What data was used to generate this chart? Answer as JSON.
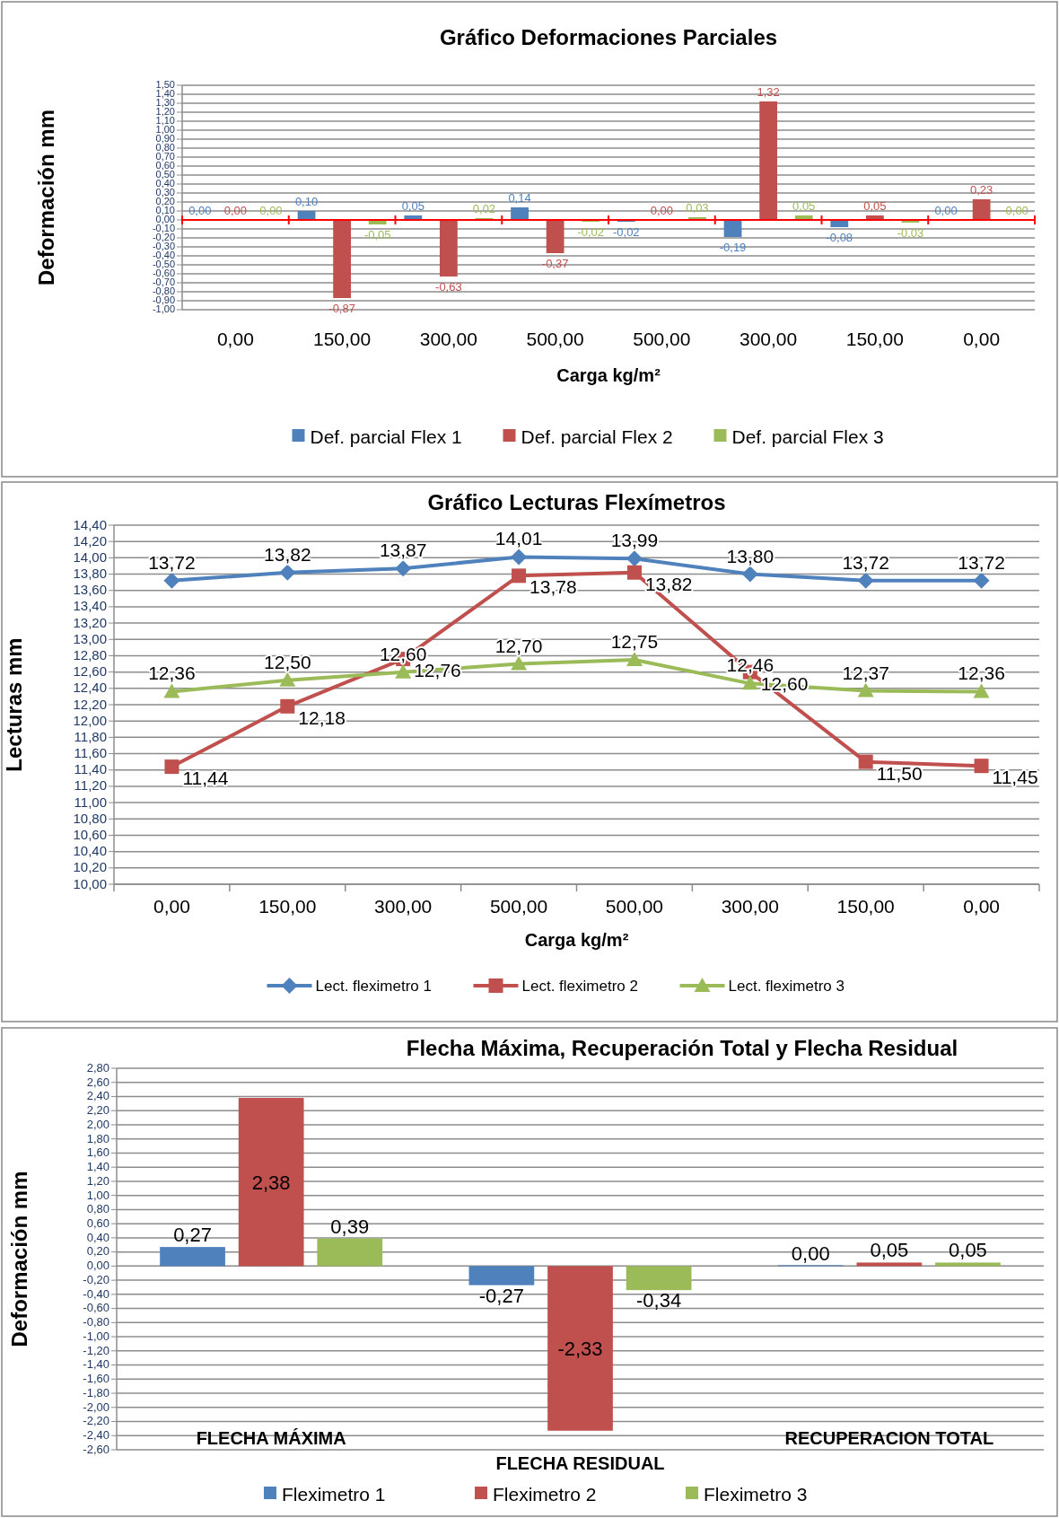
{
  "chart_data": [
    {
      "type": "bar",
      "title": "Gráfico Deformaciones Parciales",
      "xlabel": "Carga kg/m²",
      "ylabel": "Deformación mm",
      "categories": [
        "0,00",
        "150,00",
        "300,00",
        "500,00",
        "500,00",
        "300,00",
        "150,00",
        "0,00"
      ],
      "series": [
        {
          "name": "Def. parcial Flex 1",
          "color": "#4f81bd",
          "values": [
            0.0,
            0.1,
            0.05,
            0.14,
            -0.02,
            -0.19,
            -0.08,
            0.0
          ],
          "value_labels": [
            "0,00",
            "0,10",
            "0,05",
            "0,14",
            "-0,02",
            "-0,19",
            "-0,08",
            "0,00"
          ]
        },
        {
          "name": "Def. parcial Flex 2",
          "color": "#c0504d",
          "values": [
            0.0,
            -0.87,
            -0.63,
            -0.37,
            0.0,
            1.32,
            0.05,
            0.23
          ],
          "value_labels": [
            "0,00",
            "-0,87",
            "-0,63",
            "-0,37",
            "0,00",
            "1,32",
            "0,05",
            "0,23"
          ]
        },
        {
          "name": "Def. parcial Flex 3",
          "color": "#9bbb59",
          "values": [
            0.0,
            -0.05,
            0.02,
            -0.02,
            0.03,
            0.05,
            -0.03,
            0.0
          ],
          "value_labels": [
            "0,00",
            "-0,05",
            "0,02",
            "-0,02",
            "0,03",
            "0,05",
            "-0,03",
            "0,00"
          ]
        }
      ],
      "ylim": [
        -1.0,
        1.5
      ],
      "yticks": [
        {
          "value": -1.0,
          "label": "-1,00"
        },
        {
          "value": -0.9,
          "label": "-0,90"
        },
        {
          "value": -0.8,
          "label": "-0,80"
        },
        {
          "value": -0.7,
          "label": "-0,70"
        },
        {
          "value": -0.6,
          "label": "-0,60"
        },
        {
          "value": -0.5,
          "label": "-0,50"
        },
        {
          "value": -0.4,
          "label": "-0,40"
        },
        {
          "value": -0.3,
          "label": "-0,30"
        },
        {
          "value": -0.2,
          "label": "-0,20"
        },
        {
          "value": -0.1,
          "label": "-0,10"
        },
        {
          "value": 0,
          "label": "0,00"
        },
        {
          "value": 0.1,
          "label": "0,10"
        },
        {
          "value": 0.2,
          "label": "0,20"
        },
        {
          "value": 0.3,
          "label": "0,30"
        },
        {
          "value": 0.4,
          "label": "0,40"
        },
        {
          "value": 0.5,
          "label": "0,50"
        },
        {
          "value": 0.6,
          "label": "0,60"
        },
        {
          "value": 0.7,
          "label": "0,70"
        },
        {
          "value": 0.8,
          "label": "0,80"
        },
        {
          "value": 0.9,
          "label": "0,90"
        },
        {
          "value": 1.0,
          "label": "1,00"
        },
        {
          "value": 1.1,
          "label": "1,10"
        },
        {
          "value": 1.2,
          "label": "1,20"
        },
        {
          "value": 1.3,
          "label": "1,30"
        },
        {
          "value": 1.4,
          "label": "1,40"
        },
        {
          "value": 1.5,
          "label": "1,50"
        }
      ],
      "ref_lines": [
        {
          "axis": "y",
          "value": 0,
          "color": "#ff0000"
        }
      ],
      "grid": "y",
      "legend": "bottom"
    },
    {
      "type": "line",
      "title": "Gráfico Lecturas Flexímetros",
      "xlabel": "Carga kg/m²",
      "ylabel": "Lecturas mm",
      "categories": [
        "0,00",
        "150,00",
        "300,00",
        "500,00",
        "500,00",
        "300,00",
        "150,00",
        "0,00"
      ],
      "series": [
        {
          "name": "Lect. fleximetro 1",
          "color": "#4f81bd",
          "marker": "diamond",
          "values": [
            13.72,
            13.82,
            13.87,
            14.01,
            13.99,
            13.8,
            13.72,
            13.72
          ],
          "value_labels": [
            "13,72",
            "13,82",
            "13,87",
            "14,01",
            "13,99",
            "13,80",
            "13,72",
            "13,72"
          ]
        },
        {
          "name": "Lect. fleximetro 2",
          "color": "#c0504d",
          "marker": "square",
          "values": [
            11.44,
            12.18,
            12.76,
            13.78,
            13.82,
            12.6,
            11.5,
            11.45
          ],
          "value_labels": [
            "11,44",
            "12,18",
            "12,76",
            "13,78",
            "13,82",
            "12,60",
            "11,50",
            "11,45"
          ]
        },
        {
          "name": "Lect. fleximetro 3",
          "color": "#9bbb59",
          "marker": "triangle",
          "values": [
            12.36,
            12.5,
            12.6,
            12.7,
            12.75,
            12.46,
            12.37,
            12.36
          ],
          "value_labels": [
            "12,36",
            "12,50",
            "12,60",
            "12,70",
            "12,75",
            "12,46",
            "12,37",
            "12,36"
          ]
        }
      ],
      "ylim": [
        10.0,
        14.4
      ],
      "yticks": [
        {
          "value": 10.0,
          "label": "10,00"
        },
        {
          "value": 10.2,
          "label": "10,20"
        },
        {
          "value": 10.4,
          "label": "10,40"
        },
        {
          "value": 10.6,
          "label": "10,60"
        },
        {
          "value": 10.8,
          "label": "10,80"
        },
        {
          "value": 11.0,
          "label": "11,00"
        },
        {
          "value": 11.2,
          "label": "11,20"
        },
        {
          "value": 11.4,
          "label": "11,40"
        },
        {
          "value": 11.6,
          "label": "11,60"
        },
        {
          "value": 11.8,
          "label": "11,80"
        },
        {
          "value": 12.0,
          "label": "12,00"
        },
        {
          "value": 12.2,
          "label": "12,20"
        },
        {
          "value": 12.4,
          "label": "12,40"
        },
        {
          "value": 12.6,
          "label": "12,60"
        },
        {
          "value": 12.8,
          "label": "12,80"
        },
        {
          "value": 13.0,
          "label": "13,00"
        },
        {
          "value": 13.2,
          "label": "13,20"
        },
        {
          "value": 13.4,
          "label": "13,40"
        },
        {
          "value": 13.6,
          "label": "13,60"
        },
        {
          "value": 13.8,
          "label": "13,80"
        },
        {
          "value": 14.0,
          "label": "14,00"
        },
        {
          "value": 14.2,
          "label": "14,20"
        },
        {
          "value": 14.4,
          "label": "14,40"
        }
      ],
      "grid": "y",
      "legend": "bottom"
    },
    {
      "type": "bar",
      "title": "Flecha Máxima, Recuperación Total y Flecha Residual",
      "ylabel": "Deformación mm",
      "categories": [
        "FLECHA MÁXIMA",
        "FLECHA RESIDUAL",
        "RECUPERACION TOTAL"
      ],
      "series": [
        {
          "name": "Fleximetro 1",
          "color": "#4f81bd",
          "values": [
            0.27,
            -0.27,
            0.0
          ],
          "value_labels": [
            "0,27",
            "-0,27",
            "0,00"
          ]
        },
        {
          "name": "Fleximetro 2",
          "color": "#c0504d",
          "values": [
            2.38,
            -2.33,
            0.05
          ],
          "value_labels": [
            "2,38",
            "-2,33",
            "0,05"
          ]
        },
        {
          "name": "Fleximetro 3",
          "color": "#9bbb59",
          "values": [
            0.39,
            -0.34,
            0.05
          ],
          "value_labels": [
            "0,39",
            "-0,34",
            "0,05"
          ]
        }
      ],
      "ylim": [
        -2.6,
        2.8
      ],
      "yticks": [
        {
          "value": -2.6,
          "label": "-2,60"
        },
        {
          "value": -2.4,
          "label": "-2,40"
        },
        {
          "value": -2.2,
          "label": "-2,20"
        },
        {
          "value": -2.0,
          "label": "-2,00"
        },
        {
          "value": -1.8,
          "label": "-1,80"
        },
        {
          "value": -1.6,
          "label": "-1,60"
        },
        {
          "value": -1.4,
          "label": "-1,40"
        },
        {
          "value": -1.2,
          "label": "-1,20"
        },
        {
          "value": -1.0,
          "label": "-1,00"
        },
        {
          "value": -0.8,
          "label": "-0,80"
        },
        {
          "value": -0.6,
          "label": "-0,60"
        },
        {
          "value": -0.4,
          "label": "-0,40"
        },
        {
          "value": -0.2,
          "label": "-0,20"
        },
        {
          "value": 0,
          "label": "0,00"
        },
        {
          "value": 0.2,
          "label": "0,20"
        },
        {
          "value": 0.4,
          "label": "0,40"
        },
        {
          "value": 0.6,
          "label": "0,60"
        },
        {
          "value": 0.8,
          "label": "0,80"
        },
        {
          "value": 1.0,
          "label": "1,00"
        },
        {
          "value": 1.2,
          "label": "1,20"
        },
        {
          "value": 1.4,
          "label": "1,40"
        },
        {
          "value": 1.6,
          "label": "1,60"
        },
        {
          "value": 1.8,
          "label": "1,80"
        },
        {
          "value": 2.0,
          "label": "2,00"
        },
        {
          "value": 2.2,
          "label": "2,20"
        },
        {
          "value": 2.4,
          "label": "2,40"
        },
        {
          "value": 2.6,
          "label": "2,60"
        },
        {
          "value": 2.8,
          "label": "2,80"
        }
      ],
      "grid": "y",
      "legend": "bottom"
    }
  ]
}
